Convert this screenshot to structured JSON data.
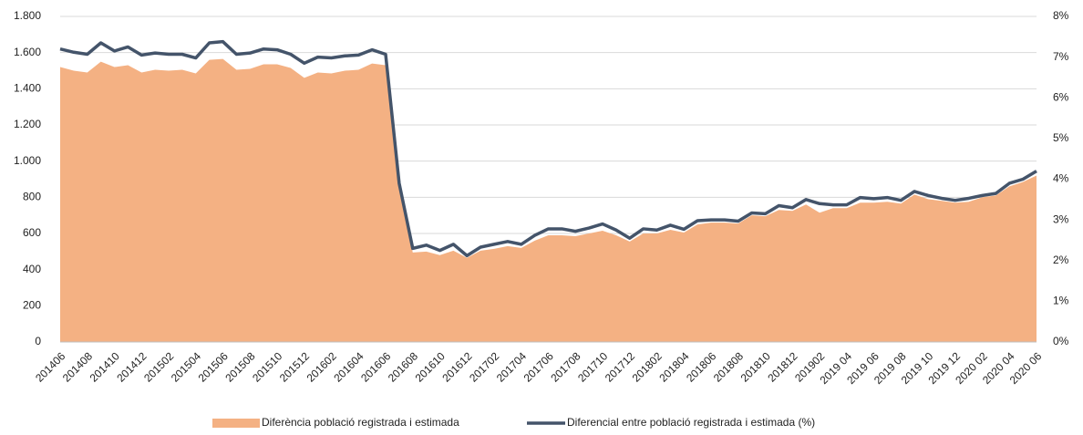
{
  "chart_data": {
    "type": "area",
    "categories": [
      "201406",
      null,
      "201408",
      null,
      "201410",
      null,
      "201412",
      null,
      "201502",
      null,
      "201504",
      null,
      "201506",
      null,
      "201508",
      null,
      "201510",
      null,
      "201512",
      null,
      "201602",
      null,
      "201604",
      null,
      "201606",
      null,
      "201608",
      null,
      "201610",
      null,
      "201612",
      null,
      "201702",
      null,
      "201704",
      null,
      "201706",
      null,
      "201708",
      null,
      "201710",
      null,
      "201712",
      null,
      "201802",
      null,
      "201804",
      null,
      "201806",
      null,
      "201808",
      null,
      "201810",
      null,
      "201812",
      null,
      "201902",
      null,
      "2019 04",
      null,
      "2019 06",
      null,
      "2019 08",
      null,
      "2019 10",
      null,
      "2019 12",
      null,
      "2020 02",
      null,
      "2020 04",
      null,
      "2020 06"
    ],
    "series": [
      {
        "name": "Diferència població registrada i estimada",
        "type": "area",
        "color": "#f4b183",
        "values": [
          1520,
          1500,
          1490,
          1550,
          1520,
          1530,
          1490,
          1505,
          1500,
          1505,
          1485,
          1560,
          1565,
          1505,
          1510,
          1535,
          1535,
          1515,
          1460,
          1490,
          1485,
          1500,
          1505,
          1540,
          1530,
          880,
          495,
          500,
          480,
          505,
          465,
          505,
          515,
          530,
          520,
          560,
          590,
          590,
          585,
          600,
          615,
          590,
          555,
          600,
          600,
          620,
          605,
          650,
          660,
          660,
          655,
          700,
          695,
          730,
          725,
          760,
          715,
          740,
          740,
          770,
          770,
          775,
          765,
          815,
          790,
          780,
          770,
          775,
          800,
          810,
          860,
          885,
          920
        ]
      },
      {
        "name": "Diferencial entre població registrada i estimada (%)",
        "type": "line",
        "axis": "y2",
        "color": "#44546a",
        "values": [
          7.2,
          7.12,
          7.07,
          7.35,
          7.15,
          7.25,
          7.05,
          7.1,
          7.07,
          7.07,
          6.98,
          7.35,
          7.38,
          7.07,
          7.1,
          7.2,
          7.18,
          7.07,
          6.85,
          7.0,
          6.98,
          7.03,
          7.05,
          7.18,
          7.07,
          3.9,
          2.3,
          2.38,
          2.25,
          2.4,
          2.12,
          2.33,
          2.4,
          2.47,
          2.4,
          2.62,
          2.78,
          2.78,
          2.72,
          2.8,
          2.9,
          2.75,
          2.55,
          2.78,
          2.75,
          2.87,
          2.77,
          2.98,
          3.0,
          3.0,
          2.97,
          3.17,
          3.15,
          3.35,
          3.3,
          3.5,
          3.4,
          3.37,
          3.37,
          3.55,
          3.52,
          3.55,
          3.48,
          3.7,
          3.6,
          3.53,
          3.48,
          3.53,
          3.6,
          3.65,
          3.9,
          4.0,
          4.2
        ]
      }
    ],
    "ylim": [
      0,
      1800
    ],
    "yticks": [
      0,
      200,
      400,
      600,
      800,
      {
        "value": 1000,
        "label": "1.000"
      },
      {
        "value": 1200,
        "label": "1.200"
      },
      {
        "value": 1400,
        "label": "1.400"
      },
      {
        "value": 1600,
        "label": "1.600"
      },
      {
        "value": 1800,
        "label": "1.800"
      }
    ],
    "y2lim": [
      0,
      8
    ],
    "y2ticks": [
      {
        "value": 0,
        "label": "0%"
      },
      {
        "value": 1,
        "label": "1%"
      },
      {
        "value": 2,
        "label": "2%"
      },
      {
        "value": 3,
        "label": "3%"
      },
      {
        "value": 4,
        "label": "4%"
      },
      {
        "value": 5,
        "label": "5%"
      },
      {
        "value": 6,
        "label": "6%"
      },
      {
        "value": 7,
        "label": "7%"
      },
      {
        "value": 8,
        "label": "8%"
      }
    ],
    "grid": true,
    "legend": "bottom"
  }
}
